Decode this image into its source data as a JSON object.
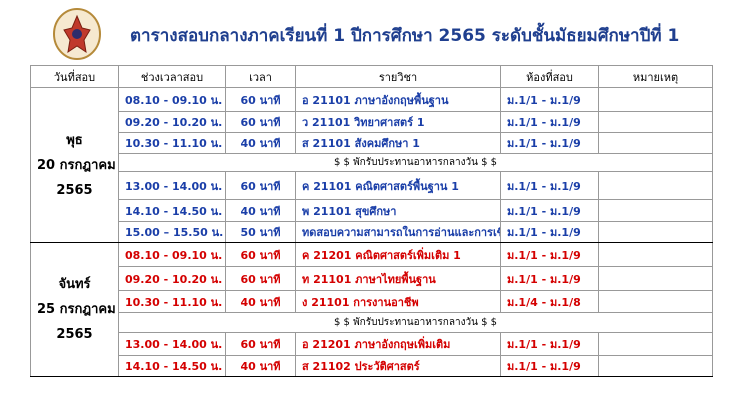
{
  "header": {
    "title": "ตารางสอบกลางภาคเรียนที่ 1 ปีการศึกษา 2565 ระดับชั้นมัธยมศึกษาปีที่  1"
  },
  "table": {
    "headers": [
      "วันที่สอบ",
      "ช่วงเวลาสอบ",
      "เวลา",
      "รายวิชา",
      "ห้องที่สอบ",
      "หมายเหตุ"
    ],
    "groups": [
      {
        "day": [
          "พุธ",
          "20 กรกฎาคม",
          "2565"
        ],
        "rows": [
          {
            "time": "08.10 - 09.10 น.",
            "duration": "60 นาที",
            "subject": "อ 21101 ภาษาอังกฤษพื้นฐาน",
            "room": "ม.1/1 - ม.1/9"
          },
          {
            "time": "09.20 - 10.20 น.",
            "duration": "60 นาที",
            "subject": "ว 21101 วิทยาศาสตร์ 1",
            "room": "ม.1/1 - ม.1/9"
          },
          {
            "time": "10.30 - 11.10 น.",
            "duration": "40 นาที",
            "subject": "ส 21101  สังคมศึกษา 1",
            "room": "ม.1/1 - ม.1/9"
          },
          {
            "break": "$ $ พักรับประทานอาหารกลางวัน $ $"
          },
          {
            "time": "13.00 - 14.00 น.",
            "duration": "60 นาที",
            "subject": "ค 21101 คณิตศาสตร์พื้นฐาน 1",
            "room": "ม.1/1 - ม.1/9"
          },
          {
            "time": "14.10 - 14.50 น.",
            "duration": "40 นาที",
            "subject": "พ 21101 สุขศึกษา",
            "room": "ม.1/1 - ม.1/9"
          },
          {
            "time": "15.00 – 15.50 น.",
            "duration": "50 นาที",
            "subject": "ทดสอบความสามารถในการอ่านและการเขียน",
            "room": "ม.1/1 - ม.1/9"
          }
        ]
      },
      {
        "day": [
          "จันทร์",
          "25 กรกฎาคม",
          "2565"
        ],
        "rows": [
          {
            "time": "08.10 - 09.10 น.",
            "duration": "60 นาที",
            "subject": "ค 21201  คณิตศาสตร์เพิ่มเติม 1",
            "room": "ม.1/1 - ม.1/9"
          },
          {
            "time": "09.20 - 10.20 น.",
            "duration": "60 นาที",
            "subject": "ท 21101  ภาษาไทยพื้นฐาน",
            "room": "ม.1/1 - ม.1/9"
          },
          {
            "time": "10.30 - 11.10 น.",
            "duration": "40 นาที",
            "subject": "ง 21101  การงานอาชีพ",
            "room": "ม.1/4 - ม.1/8"
          },
          {
            "break": "$ $ พักรับประทานอาหารกลางวัน $ $"
          },
          {
            "time": "13.00 - 14.00 น.",
            "duration": "60 นาที",
            "subject": "อ 21201 ภาษาอังกฤษเพิ่มเติม",
            "room": "ม.1/1 - ม.1/9"
          },
          {
            "time": "14.10 - 14.50 น.",
            "duration": "40 นาที",
            "subject": "ส 21102 ประวัติศาสตร์",
            "room": "ม.1/1 - ม.1/9"
          }
        ]
      }
    ]
  }
}
